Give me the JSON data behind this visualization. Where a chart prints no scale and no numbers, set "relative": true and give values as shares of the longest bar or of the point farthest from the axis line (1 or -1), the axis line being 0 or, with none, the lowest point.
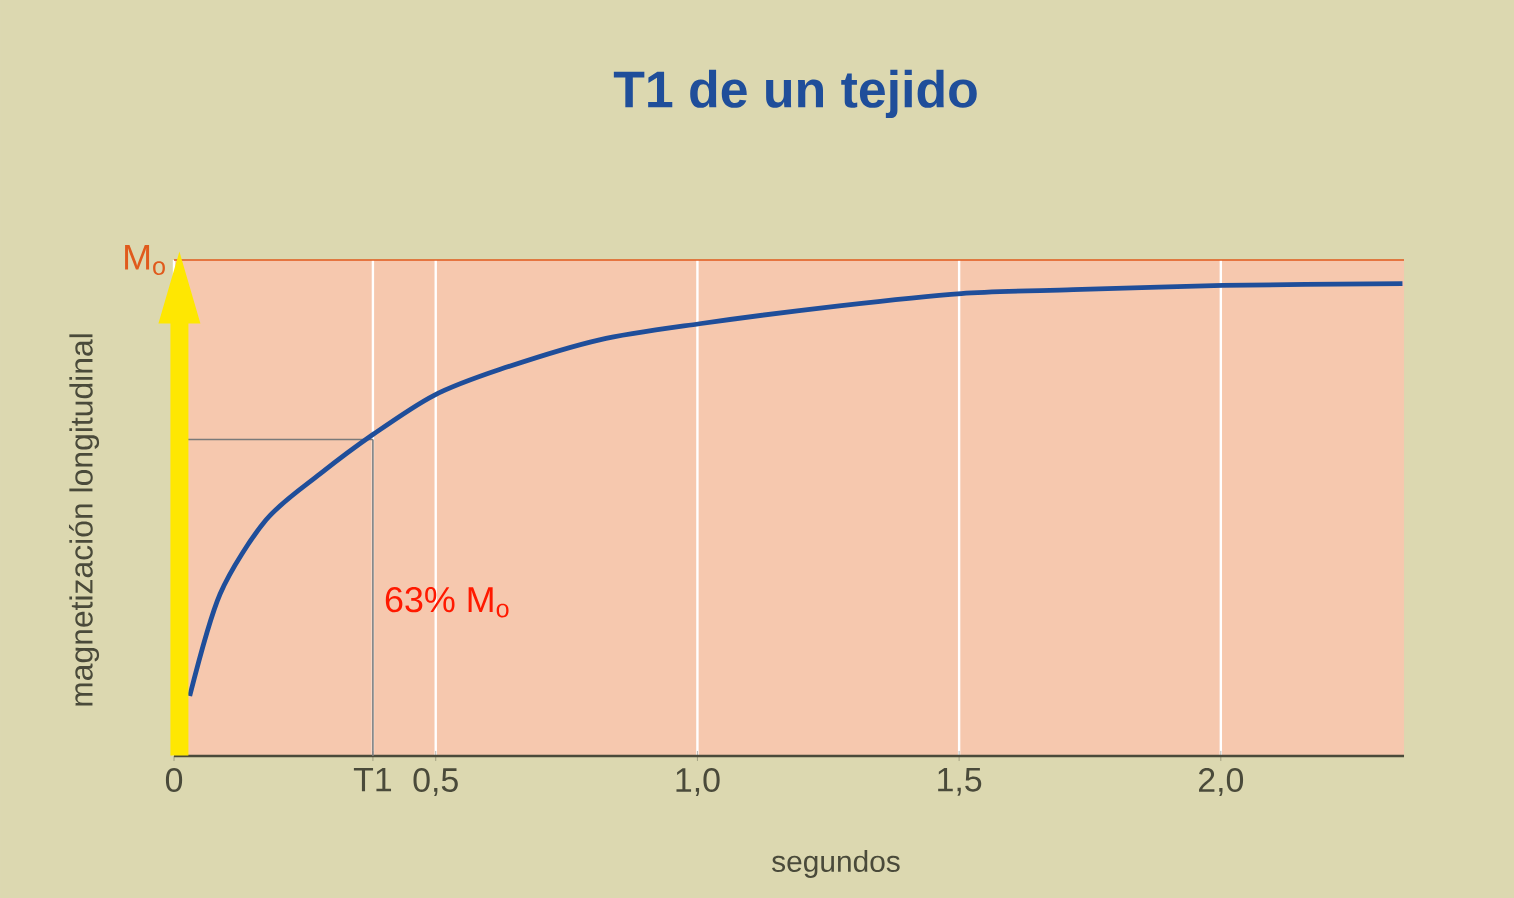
{
  "chart_data": {
    "type": "line",
    "title": "T1 de un tejido",
    "xlabel": "segundos",
    "ylabel": "magnetización longitudinal",
    "relative": true,
    "x": [
      0.03,
      0.088,
      0.176,
      0.279,
      0.382,
      0.496,
      0.622,
      0.813,
      1.004,
      1.271,
      1.504,
      1.718,
      2.004,
      2.347
    ],
    "series": [
      {
        "color": "#1f4e9a",
        "values": [
          0.127,
          0.343,
          0.5,
          0.597,
          0.682,
          0.763,
          0.818,
          0.881,
          0.915,
          0.953,
          0.979,
          0.987,
          0.996,
          1
        ]
      }
    ],
    "xlim": [
      0,
      2.35
    ],
    "xticks": [
      0,
      {
        "value": 0.38,
        "label": "T1"
      },
      {
        "value": 0.5,
        "label": "0,5"
      },
      {
        "value": 1.0,
        "label": "1,0"
      },
      {
        "value": 1.5,
        "label": "1,5"
      },
      {
        "value": 2.0,
        "label": "2,0"
      }
    ],
    "grid": "x",
    "marker": "none",
    "line_style": "solid",
    "ref_lines": [
      {
        "axis": "y",
        "value": 1.05,
        "label": "M$_{o}$",
        "color": "#e05a1c"
      },
      {
        "axis": "y",
        "value": 0.67,
        "color": "#7a7a7a"
      },
      {
        "axis": "x",
        "value": 0.38,
        "color": "#7a7a7a"
      }
    ],
    "annotations": [
      "63% M$_{o}$"
    ]
  }
}
